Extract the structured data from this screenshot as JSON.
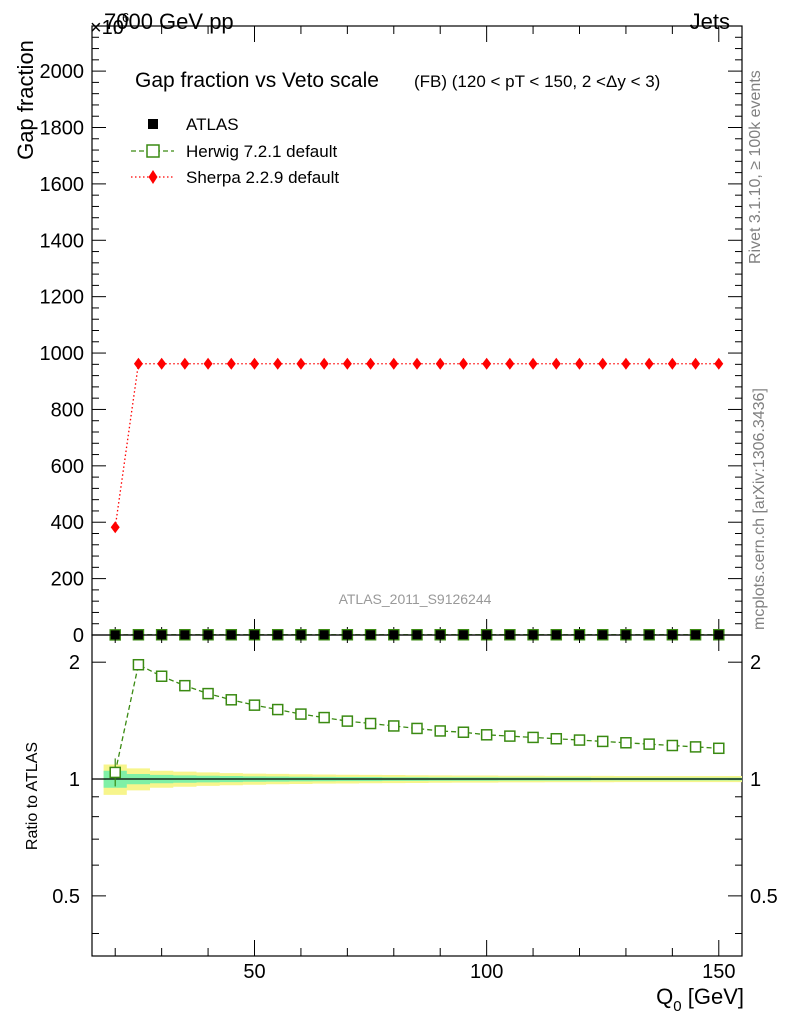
{
  "header": {
    "energy_label": "7000 GeV pp",
    "process_label": "Jets",
    "exponent_label": "×10",
    "exponent_power": "6"
  },
  "side_labels": {
    "rivet": "Rivet 3.1.10, ≥ 100k events",
    "mcplots": "mcplots.cern.ch [arXiv:1306.3436]"
  },
  "watermark": "ATLAS_2011_S9126244",
  "colors": {
    "atlas": "#000000",
    "herwig": "#3a8a12",
    "sherpa": "#ff0000",
    "band_inner": "#7ff0a6",
    "band_outer": "#f7f58c"
  },
  "chart_data": [
    {
      "type": "line",
      "title": "Gap fraction vs Veto scale",
      "subtitle": "(FB) (120 < pT < 150, 2 <Δy < 3)",
      "xlabel": "",
      "ylabel": "Gap fraction",
      "xlim": [
        15,
        155
      ],
      "ylim": [
        0,
        2160
      ],
      "y_scale_factor": "×10^6",
      "yticks": [
        0,
        200,
        400,
        600,
        800,
        1000,
        1200,
        1400,
        1600,
        1800,
        2000
      ],
      "legend_placement": "top-left",
      "x": [
        20,
        25,
        30,
        35,
        40,
        45,
        50,
        55,
        60,
        65,
        70,
        75,
        80,
        85,
        90,
        95,
        100,
        105,
        110,
        115,
        120,
        125,
        130,
        135,
        140,
        145,
        150
      ],
      "series": [
        {
          "name": "ATLAS",
          "marker": "square-filled",
          "values": [
            0.32,
            0.46,
            0.55,
            0.62,
            0.67,
            0.71,
            0.74,
            0.76,
            0.78,
            0.8,
            0.81,
            0.82,
            0.83,
            0.84,
            0.85,
            0.86,
            0.86,
            0.87,
            0.87,
            0.88,
            0.88,
            0.89,
            0.89,
            0.89,
            0.9,
            0.9,
            0.9
          ]
        },
        {
          "name": "Herwig 7.2.1 default",
          "marker": "square-open",
          "line": "dashed",
          "values": [
            0.33,
            0.91,
            0.91,
            0.91,
            0.91,
            0.91,
            0.91,
            0.91,
            0.91,
            0.91,
            0.91,
            0.91,
            0.91,
            0.91,
            0.91,
            0.91,
            0.91,
            0.91,
            0.91,
            0.91,
            0.91,
            0.91,
            0.91,
            0.91,
            0.91,
            0.91,
            0.91
          ]
        },
        {
          "name": "Sherpa 2.2.9 default",
          "marker": "diamond-filled",
          "line": "dotted",
          "values": [
            382,
            962,
            962,
            962,
            962,
            962,
            962,
            962,
            962,
            962,
            962,
            962,
            962,
            962,
            962,
            962,
            962,
            962,
            962,
            962,
            962,
            962,
            962,
            962,
            962,
            962,
            962
          ]
        }
      ]
    },
    {
      "type": "line",
      "xlabel": "Q0 [GeV]",
      "xlabel_main": "Q",
      "xlabel_sub": "0",
      "xlabel_unit": " [GeV]",
      "ylabel": "Ratio to ATLAS",
      "xlim": [
        15,
        155
      ],
      "ylim": [
        0.35,
        2.35
      ],
      "y_scale": "log",
      "xticks": [
        50,
        100,
        150
      ],
      "yticks": [
        0.5,
        1,
        2
      ],
      "x": [
        20,
        25,
        30,
        35,
        40,
        45,
        50,
        55,
        60,
        65,
        70,
        75,
        80,
        85,
        90,
        95,
        100,
        105,
        110,
        115,
        120,
        125,
        130,
        135,
        140,
        145,
        150
      ],
      "series": [
        {
          "name": "Herwig 7.2.1 default",
          "values": [
            1.04,
            1.97,
            1.84,
            1.74,
            1.66,
            1.6,
            1.55,
            1.51,
            1.47,
            1.44,
            1.41,
            1.39,
            1.37,
            1.35,
            1.33,
            1.32,
            1.3,
            1.29,
            1.28,
            1.27,
            1.26,
            1.25,
            1.24,
            1.23,
            1.22,
            1.21,
            1.2
          ]
        }
      ],
      "band_inner_halfwidth": [
        0.05,
        0.03,
        0.025,
        0.022,
        0.02,
        0.018,
        0.016,
        0.015,
        0.014,
        0.013,
        0.012,
        0.012,
        0.011,
        0.011,
        0.01,
        0.01,
        0.01,
        0.009,
        0.009,
        0.009,
        0.009,
        0.008,
        0.008,
        0.008,
        0.008,
        0.008,
        0.008
      ],
      "band_outer_halfwidth": [
        0.09,
        0.065,
        0.05,
        0.045,
        0.04,
        0.036,
        0.033,
        0.031,
        0.029,
        0.027,
        0.026,
        0.025,
        0.024,
        0.023,
        0.022,
        0.021,
        0.021,
        0.02,
        0.02,
        0.019,
        0.019,
        0.019,
        0.018,
        0.018,
        0.018,
        0.018,
        0.018
      ]
    }
  ]
}
